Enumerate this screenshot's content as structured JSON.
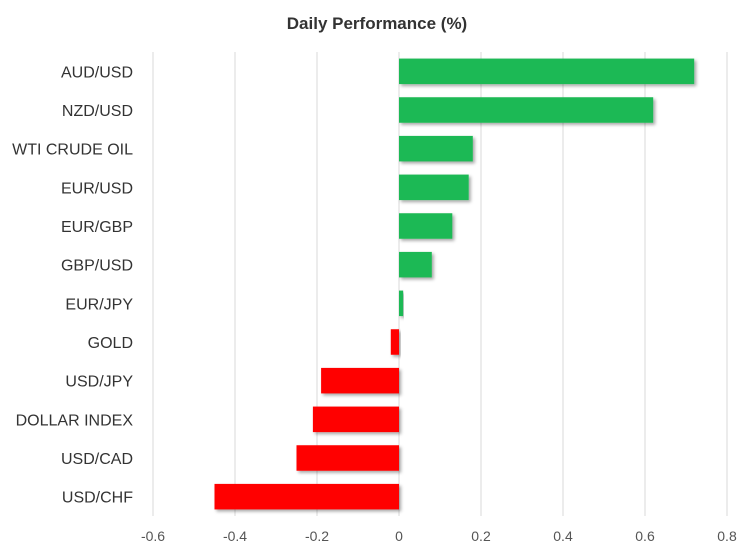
{
  "chart_data": {
    "type": "bar",
    "orientation": "horizontal",
    "title": "Daily Performance (%)",
    "xlabel": "",
    "ylabel": "",
    "categories": [
      "AUD/USD",
      "NZD/USD",
      "WTI CRUDE OIL",
      "EUR/USD",
      "EUR/GBP",
      "GBP/USD",
      "EUR/JPY",
      "GOLD",
      "USD/JPY",
      "DOLLAR INDEX",
      "USD/CAD",
      "USD/CHF"
    ],
    "values": [
      0.72,
      0.62,
      0.18,
      0.17,
      0.13,
      0.08,
      0.01,
      -0.02,
      -0.19,
      -0.21,
      -0.25,
      -0.45
    ],
    "xlim": [
      -0.6,
      0.8
    ],
    "xticks": [
      "-0.6",
      "-0.4",
      "-0.2",
      "0",
      "0.2",
      "0.4",
      "0.6",
      "0.8"
    ],
    "grid": "vertical",
    "legend": "none",
    "colors": {
      "positive": "#1db954",
      "negative": "#ff0000"
    }
  }
}
